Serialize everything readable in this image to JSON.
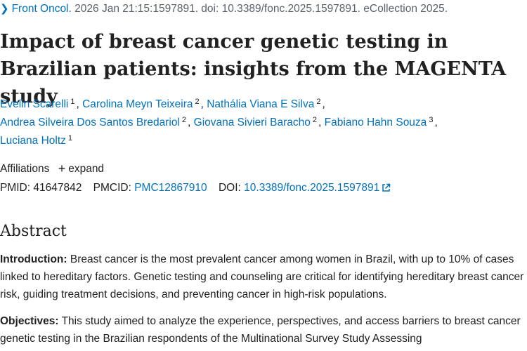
{
  "citation": {
    "journal": "Front Oncol.",
    "details": " 2026 Jan 21:15:1597891. doi: 10.3389/fonc.2025.1597891. eCollection 2025."
  },
  "title": "Impact of breast cancer genetic testing in Brazilian patients: insights from the MAGENTA study",
  "authors": [
    {
      "name": "Evelin Scarelli",
      "aff": "1"
    },
    {
      "name": "Carolina Meyn Teixeira",
      "aff": "2"
    },
    {
      "name": "Nathália Viana E Silva",
      "aff": "2"
    },
    {
      "name": "Andrea Silveira Dos Santos Bredariol",
      "aff": "2"
    },
    {
      "name": "Giovana Sivieri Baracho",
      "aff": "2"
    },
    {
      "name": "Fabiano Hahn Souza",
      "aff": "3"
    },
    {
      "name": "Luciana Holtz",
      "aff": "1"
    }
  ],
  "affiliations": {
    "label": "Affiliations",
    "expand": "expand"
  },
  "ids": {
    "pmid_label": "PMID:",
    "pmid": "41647842",
    "pmcid_label": "PMCID:",
    "pmcid": "PMC12867910",
    "doi_label": "DOI:",
    "doi": "10.3389/fonc.2025.1597891"
  },
  "abstract": {
    "heading": "Abstract",
    "intro_label": "Introduction:",
    "intro_text": " Breast cancer is the most prevalent cancer among women in Brazil, with up to 10% of cases linked to hereditary factors. Genetic testing and counseling are critical for identifying hereditary breast cancer risk, guiding treatment decisions, and preventing cancer in high-risk populations.",
    "objectives_label": "Objectives:",
    "objectives_text": " This study aimed to analyze the experience, perspectives, and access barriers to breast cancer genetic testing in the Brazilian respondents of the Multinational Survey Study Assessing"
  }
}
